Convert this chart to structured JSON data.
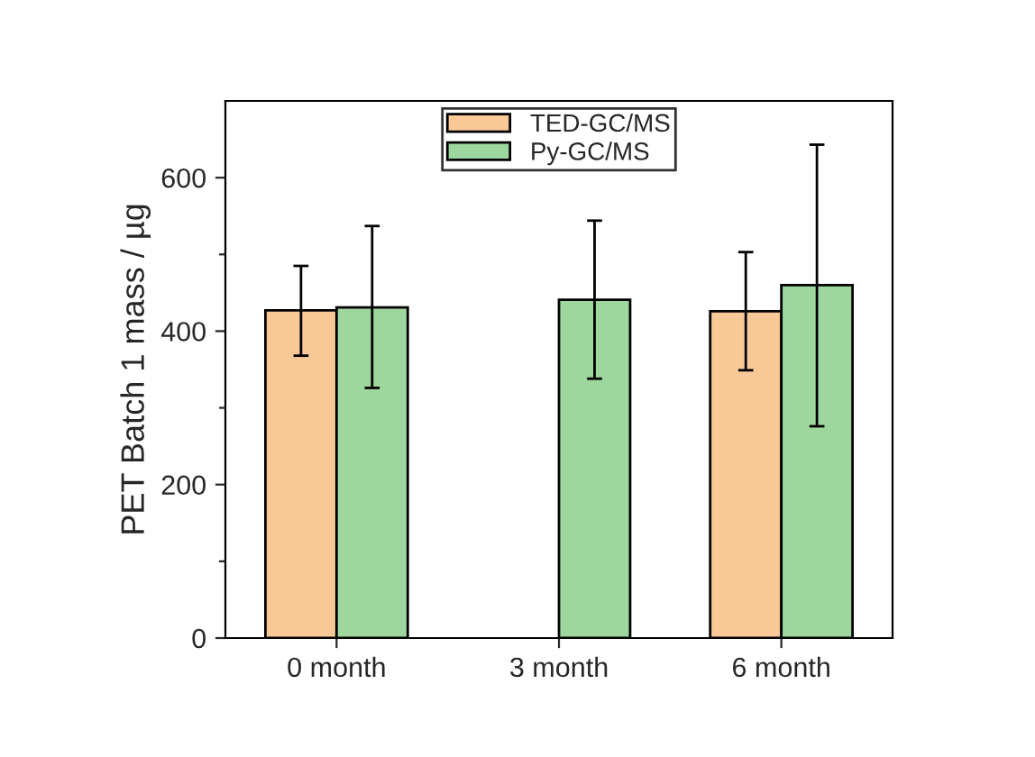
{
  "chart_data": {
    "type": "bar",
    "ylabel": "PET Batch 1 mass / µg",
    "categories": [
      "0 month",
      "3 month",
      "6 month"
    ],
    "series": [
      {
        "name": "TED-GC/MS",
        "color": "#f9c897",
        "values": [
          427,
          null,
          426
        ],
        "errors": [
          [
            368,
            485
          ],
          null,
          [
            349,
            503
          ]
        ]
      },
      {
        "name": "Py-GC/MS",
        "color": "#9ed79d",
        "values": [
          431,
          441,
          460
        ],
        "errors": [
          [
            326,
            537
          ],
          [
            338,
            544
          ],
          [
            276,
            643
          ]
        ]
      }
    ],
    "ylim": [
      0,
      700
    ],
    "yticks": [
      0,
      {
        "value": 100,
        "label": null
      },
      200,
      {
        "value": 300,
        "label": null
      },
      400,
      {
        "value": 500,
        "label": null
      },
      600
    ],
    "legend": "top",
    "grid": false
  }
}
